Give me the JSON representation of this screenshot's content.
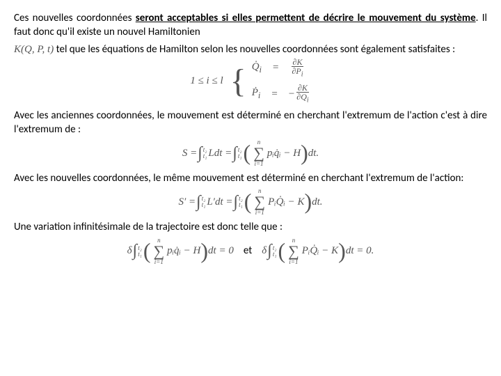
{
  "p1_a": "Ces nouvelles coordonnées ",
  "p1_b": "seront acceptables si elles permettent de décrire le mouvement du système",
  "p1_c": ". Il faut donc qu'il existe un nouvel Hamiltonien",
  "p2_ham": "K(Q, P, t)",
  "p2_rest": " tel que les équations de Hamilton selon les nouvelles coordonnées sont également satisfaites :",
  "eq1_left": "1 ≤ i ≤ l",
  "eq1_r1a": "Q̇",
  "eq1_r1b": "i",
  "eq1_eq": "=",
  "eq1_f1n": "∂K",
  "eq1_f1d": "∂P",
  "eq1_f1di": "i",
  "eq1_r2a": "Ṗ",
  "eq1_r2b": "i",
  "eq1_f2n": "∂K",
  "eq1_f2d": "∂Q",
  "eq1_f2di": "i",
  "eq1_neg": "−",
  "p3": "Avec les anciennes coordonnées, le mouvement est déterminé en cherchant l'extremum de l'action c'est à dire l'extremum de :",
  "eq2_S": "S =",
  "eq2_t1": "t₁",
  "eq2_t2": "t₂",
  "eq2_Ldt": "Ldt =",
  "eq2_sumtop": "n",
  "eq2_sumbot": "i=1",
  "eq2_body": "pᵢq̇ᵢ − H",
  "eq2_dt": " dt.",
  "p4": "Avec les nouvelles coordonnées, le même mouvement est déterminé en cherchant l'extremum de l'action:",
  "eq3_S": "S′ =",
  "eq3_Ldt": "L′dt =",
  "eq3_body": "PᵢQ̇ᵢ − K",
  "eq3_dt": " dt.",
  "p5": "Une variation infinitésimale de la trajectoire est donc telle que :",
  "eq4_d": "δ",
  "eq4_z": " dt = 0",
  "eq4_et": "et",
  "eq4_z2": " dt = 0.",
  "colors": {
    "text": "#000000",
    "math": "#555555",
    "bg": "#ffffff"
  }
}
